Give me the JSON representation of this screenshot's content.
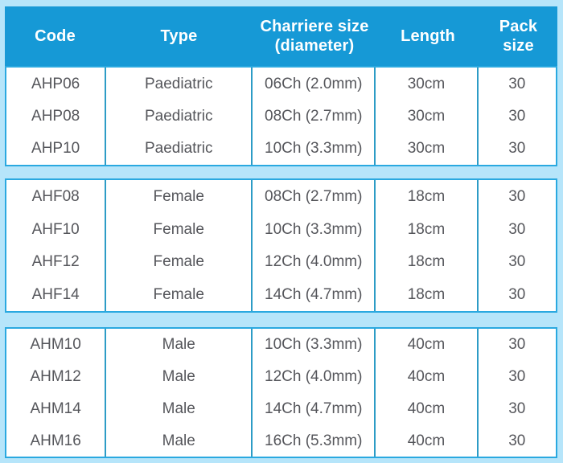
{
  "theme": {
    "page_bg": "#b6e5fa",
    "header_bg": "#1699d6",
    "header_text": "#ffffff",
    "cell_text": "#55565b",
    "section_border": "#2aa9e0",
    "divider": "#2d9cc6",
    "cell_bg": "#ffffff"
  },
  "table": {
    "columns": [
      {
        "label": "Code"
      },
      {
        "label": "Type"
      },
      {
        "label": "Charriere size\n(diameter)"
      },
      {
        "label": "Length"
      },
      {
        "label": "Pack\nsize"
      }
    ],
    "sections": [
      {
        "name": "paediatric",
        "rows": [
          {
            "code": "AHP06",
            "type": "Paediatric",
            "size": "06Ch (2.0mm)",
            "length": "30cm",
            "pack": "30"
          },
          {
            "code": "AHP08",
            "type": "Paediatric",
            "size": "08Ch (2.7mm)",
            "length": "30cm",
            "pack": "30"
          },
          {
            "code": "AHP10",
            "type": "Paediatric",
            "size": "10Ch (3.3mm)",
            "length": "30cm",
            "pack": "30"
          }
        ]
      },
      {
        "name": "female",
        "rows": [
          {
            "code": "AHF08",
            "type": "Female",
            "size": "08Ch (2.7mm)",
            "length": "18cm",
            "pack": "30"
          },
          {
            "code": "AHF10",
            "type": "Female",
            "size": "10Ch (3.3mm)",
            "length": "18cm",
            "pack": "30"
          },
          {
            "code": "AHF12",
            "type": "Female",
            "size": "12Ch (4.0mm)",
            "length": "18cm",
            "pack": "30"
          },
          {
            "code": "AHF14",
            "type": "Female",
            "size": "14Ch (4.7mm)",
            "length": "18cm",
            "pack": "30"
          }
        ]
      },
      {
        "name": "male",
        "rows": [
          {
            "code": "AHM10",
            "type": "Male",
            "size": "10Ch (3.3mm)",
            "length": "40cm",
            "pack": "30"
          },
          {
            "code": "AHM12",
            "type": "Male",
            "size": "12Ch (4.0mm)",
            "length": "40cm",
            "pack": "30"
          },
          {
            "code": "AHM14",
            "type": "Male",
            "size": "14Ch (4.7mm)",
            "length": "40cm",
            "pack": "30"
          },
          {
            "code": "AHM16",
            "type": "Male",
            "size": "16Ch (5.3mm)",
            "length": "40cm",
            "pack": "30"
          }
        ]
      }
    ]
  }
}
